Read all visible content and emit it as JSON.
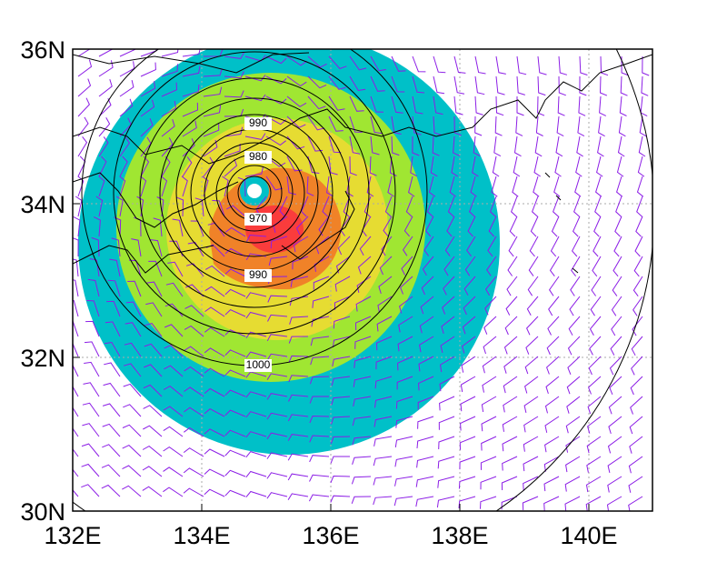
{
  "map": {
    "lat_labels": [
      "36N",
      "34N",
      "32N",
      "30N"
    ],
    "lon_labels": [
      "132E",
      "134E",
      "136E",
      "138E",
      "140E"
    ],
    "contour_labels": [
      "990",
      "980",
      "970",
      "990",
      "1000"
    ]
  }
}
